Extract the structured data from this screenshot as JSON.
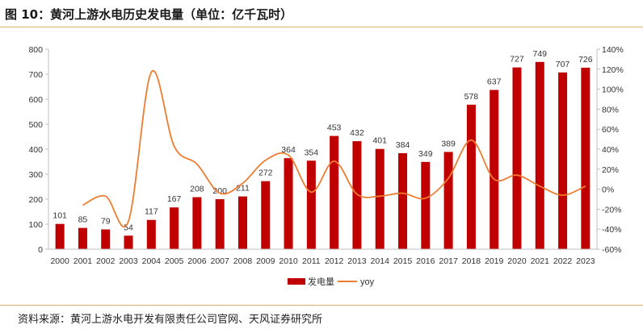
{
  "header": {
    "title": "图 10：黄河上游水电历史发电量（单位：亿千瓦时）"
  },
  "footer": {
    "source": "资料来源：黄河上游水电开发有限责任公司官网、天风证券研究所"
  },
  "chart_data": {
    "type": "bar",
    "categories": [
      "2000",
      "2001",
      "2002",
      "2003",
      "2004",
      "2005",
      "2006",
      "2007",
      "2008",
      "2009",
      "2010",
      "2011",
      "2012",
      "2013",
      "2014",
      "2015",
      "2016",
      "2017",
      "2018",
      "2019",
      "2020",
      "2021",
      "2022",
      "2023"
    ],
    "series": [
      {
        "name": "发电量",
        "type": "bar",
        "axis": "left",
        "color": "#c00000",
        "values": [
          101,
          85,
          79,
          54,
          117,
          167,
          208,
          200,
          211,
          272,
          364,
          354,
          453,
          432,
          401,
          384,
          349,
          389,
          578,
          637,
          727,
          749,
          707,
          726
        ],
        "labels": [
          "101",
          "85",
          "79",
          "54",
          "117",
          "167",
          "208",
          "200",
          "211",
          "272",
          "364",
          "354",
          "453",
          "432",
          "401",
          "384",
          "349",
          "389",
          "578",
          "637",
          "727",
          "749",
          "707",
          "726"
        ]
      },
      {
        "name": "yoy",
        "type": "line",
        "axis": "right",
        "color": "#ed7d31",
        "values": [
          null,
          -16,
          -7,
          -32,
          117,
          43,
          25,
          -4,
          6,
          29,
          34,
          -3,
          28,
          -5,
          -7,
          -4,
          -9,
          11,
          49,
          10,
          14,
          3,
          -6,
          3
        ]
      }
    ],
    "y_left": {
      "min": 0,
      "max": 800,
      "ticks": [
        0,
        100,
        200,
        300,
        400,
        500,
        600,
        700,
        800
      ],
      "tick_labels": [
        "0",
        "100",
        "200",
        "300",
        "400",
        "500",
        "600",
        "700",
        "800"
      ]
    },
    "y_right": {
      "min": -60,
      "max": 140,
      "ticks": [
        -60,
        -40,
        -20,
        0,
        20,
        40,
        60,
        80,
        100,
        120,
        140
      ],
      "tick_labels": [
        "-60%",
        "-40%",
        "-20%",
        "0%",
        "20%",
        "40%",
        "60%",
        "80%",
        "100%",
        "120%",
        "140%"
      ]
    },
    "grid": false,
    "legend": {
      "position": "bottom",
      "items": [
        "发电量",
        "yoy"
      ]
    }
  }
}
